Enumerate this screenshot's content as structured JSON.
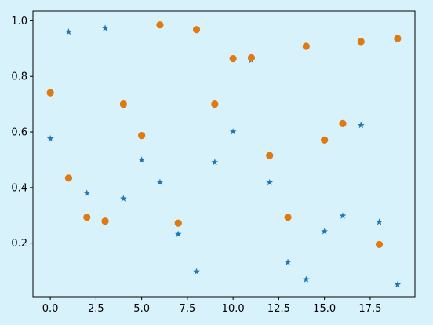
{
  "background": "#d8f2fc",
  "chart_data": {
    "type": "scatter",
    "title": "",
    "xlabel": "",
    "ylabel": "",
    "xlim": [
      -0.95,
      19.95
    ],
    "ylim": [
      0.007,
      1.035
    ],
    "xticks": [
      0.0,
      2.5,
      5.0,
      7.5,
      10.0,
      12.5,
      15.0,
      17.5
    ],
    "xtick_labels": [
      "0.0",
      "2.5",
      "5.0",
      "7.5",
      "10.0",
      "12.5",
      "15.0",
      "17.5"
    ],
    "yticks": [
      0.2,
      0.4,
      0.6,
      0.8,
      1.0
    ],
    "ytick_labels": [
      "0.2",
      "0.4",
      "0.6",
      "0.8",
      "1.0"
    ],
    "grid": false,
    "series": [
      {
        "marker": "star",
        "color": "#1f77b4",
        "x": [
          0,
          1,
          2,
          3,
          4,
          5,
          6,
          7,
          8,
          9,
          10,
          11,
          12,
          13,
          14,
          15,
          16,
          17,
          18,
          19
        ],
        "y": [
          0.576,
          0.96,
          0.38,
          0.973,
          0.36,
          0.499,
          0.419,
          0.232,
          0.097,
          0.491,
          0.601,
          0.859,
          0.418,
          0.131,
          0.069,
          0.242,
          0.298,
          0.624,
          0.276,
          0.051
        ]
      },
      {
        "marker": "circle",
        "color": "#e07a10",
        "x": [
          0,
          1,
          2,
          3,
          4,
          5,
          6,
          7,
          8,
          9,
          10,
          11,
          12,
          13,
          14,
          15,
          16,
          17,
          18,
          19
        ],
        "y": [
          0.741,
          0.434,
          0.293,
          0.279,
          0.7,
          0.587,
          0.985,
          0.272,
          0.968,
          0.7,
          0.864,
          0.867,
          0.515,
          0.293,
          0.908,
          0.571,
          0.63,
          0.925,
          0.195,
          0.936
        ]
      }
    ]
  }
}
